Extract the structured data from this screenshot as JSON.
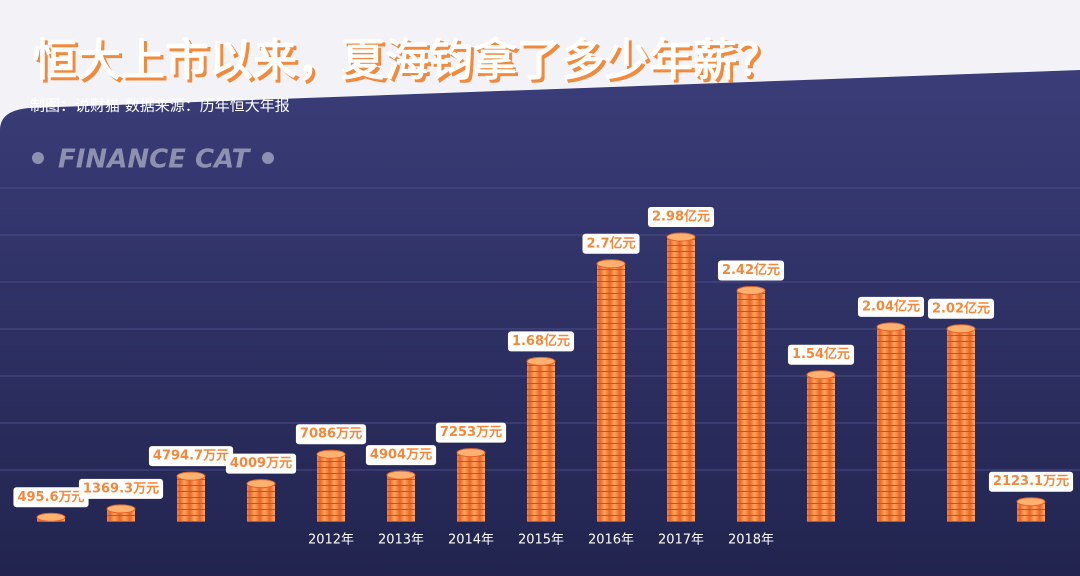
{
  "chart_data": {
    "type": "bar",
    "title": "恒大上市以来，夏海钧拿了多少年薪？",
    "subtitle": "制图：说财猫  数据来源：历年恒大年报",
    "watermark": "FINANCE CAT",
    "categories": [
      null,
      null,
      null,
      null,
      "2012年",
      "2013年",
      "2014年",
      "2015年",
      "2016年",
      "2017年",
      "2018年",
      null,
      null,
      null,
      null
    ],
    "values": [
      495.6,
      1369.3,
      4794.7,
      4009,
      7086,
      4904,
      7253,
      16800,
      27000,
      29800,
      24200,
      15400,
      20400,
      20200,
      2123.1
    ],
    "value_labels": [
      "495.6万元",
      "1369.3万元",
      "4794.7万元",
      "4009万元",
      "7086万元",
      "4904万元",
      "7253万元",
      "1.68亿元",
      "2.7亿元",
      "2.98亿元",
      "2.42亿元",
      "1.54亿元",
      "2.04亿元",
      "2.02亿元",
      "2123.1万元"
    ],
    "color": "#f5873a"
  }
}
